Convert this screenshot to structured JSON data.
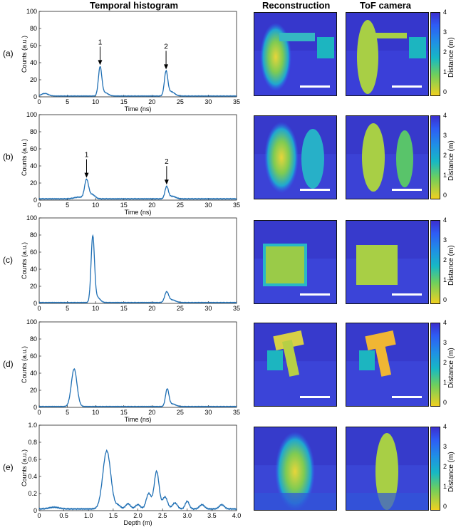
{
  "headers": {
    "histogram": "Temporal histogram",
    "reconstruction": "Reconstruction",
    "tof": "ToF camera"
  },
  "colorbar": {
    "label": "Distance (m)",
    "ticks": [
      "4",
      "3",
      "2",
      "1",
      "0"
    ],
    "colors": [
      "#3b2fcf",
      "#2e5cf5",
      "#1f8fe6",
      "#17b8c4",
      "#6fcf5c",
      "#f0d020"
    ]
  },
  "line_color": "#1f6fb4",
  "chart_data": [
    {
      "type": "line",
      "row_label": "(a)",
      "xlabel": "Time (ns)",
      "ylabel": "Counts (a.u.)",
      "xlim": [
        0,
        35
      ],
      "ylim": [
        0,
        100
      ],
      "xticks": [
        0,
        5,
        10,
        15,
        20,
        25,
        30,
        35
      ],
      "yticks": [
        0,
        20,
        40,
        60,
        80,
        100
      ],
      "peaks": [
        {
          "x": 1.0,
          "y": 3,
          "w": 0.6
        },
        {
          "x": 10.8,
          "y": 33,
          "w": 0.3
        },
        {
          "x": 11.6,
          "y": 4,
          "w": 0.6
        },
        {
          "x": 22.5,
          "y": 28,
          "w": 0.3
        },
        {
          "x": 23.4,
          "y": 5,
          "w": 0.6
        }
      ],
      "baseline": 1,
      "annotations": [
        {
          "text": "1",
          "x": 10.8,
          "y": 33
        },
        {
          "text": "2",
          "x": 22.5,
          "y": 28
        }
      ]
    },
    {
      "type": "line",
      "row_label": "(b)",
      "xlabel": "Time (ns)",
      "ylabel": "Counts (a.u.)",
      "xlim": [
        0,
        35
      ],
      "ylim": [
        0,
        100
      ],
      "xticks": [
        0,
        5,
        10,
        15,
        20,
        25,
        30,
        35
      ],
      "yticks": [
        0,
        20,
        40,
        60,
        80,
        100
      ],
      "peaks": [
        {
          "x": 7.0,
          "y": 2,
          "w": 0.8
        },
        {
          "x": 8.4,
          "y": 22,
          "w": 0.35
        },
        {
          "x": 9.4,
          "y": 5,
          "w": 0.5
        },
        {
          "x": 22.6,
          "y": 14,
          "w": 0.3
        },
        {
          "x": 23.6,
          "y": 3,
          "w": 0.6
        }
      ],
      "baseline": 1.5,
      "annotations": [
        {
          "text": "1",
          "x": 8.4,
          "y": 22
        },
        {
          "text": "2",
          "x": 22.6,
          "y": 14
        }
      ]
    },
    {
      "type": "line",
      "row_label": "(c)",
      "xlabel": "",
      "ylabel": "Counts (a.u.)",
      "xlim": [
        0,
        35
      ],
      "ylim": [
        0,
        100
      ],
      "xticks": [
        0,
        5,
        10,
        15,
        20,
        25,
        30,
        35
      ],
      "yticks": [
        0,
        20,
        40,
        60,
        80,
        100
      ],
      "peaks": [
        {
          "x": 9.5,
          "y": 77,
          "w": 0.3
        },
        {
          "x": 10.3,
          "y": 6,
          "w": 0.5
        },
        {
          "x": 22.6,
          "y": 12,
          "w": 0.35
        },
        {
          "x": 23.6,
          "y": 3,
          "w": 0.6
        }
      ],
      "baseline": 1,
      "annotations": []
    },
    {
      "type": "line",
      "row_label": "(d)",
      "xlabel": "Time (ns)",
      "ylabel": "Counts (a.u.)",
      "xlim": [
        0,
        35
      ],
      "ylim": [
        0,
        100
      ],
      "xticks": [
        0,
        5,
        10,
        15,
        20,
        25,
        30,
        35
      ],
      "yticks": [
        0,
        20,
        40,
        60,
        80,
        100
      ],
      "peaks": [
        {
          "x": 6.2,
          "y": 44,
          "w": 0.5
        },
        {
          "x": 22.7,
          "y": 20,
          "w": 0.3
        },
        {
          "x": 23.6,
          "y": 3,
          "w": 0.6
        }
      ],
      "baseline": 1,
      "annotations": []
    },
    {
      "type": "line",
      "row_label": "(e)",
      "xlabel": "Depth (m)",
      "ylabel": "Counts (a.u.)",
      "xlim": [
        0,
        4.0
      ],
      "ylim": [
        0,
        1.0
      ],
      "xticks": [
        0,
        0.5,
        1.0,
        1.5,
        2.0,
        2.5,
        3.0,
        3.5,
        4.0
      ],
      "xtick_labels": [
        "0",
        "0.5",
        "1.0",
        "1.5",
        "2.0",
        "2.5",
        "3.0",
        "3.5",
        "4.0"
      ],
      "yticks": [
        0,
        0.2,
        0.4,
        0.6,
        0.8,
        1.0
      ],
      "ytick_labels": [
        "0",
        "0.2",
        "0.4",
        "0.6",
        "0.8",
        "1.0"
      ],
      "peaks": [
        {
          "x": 1.37,
          "y": 0.68,
          "w": 0.08
        },
        {
          "x": 1.6,
          "y": 0.04,
          "w": 0.05
        },
        {
          "x": 1.8,
          "y": 0.06,
          "w": 0.05
        },
        {
          "x": 2.0,
          "y": 0.05,
          "w": 0.05
        },
        {
          "x": 2.22,
          "y": 0.18,
          "w": 0.05
        },
        {
          "x": 2.38,
          "y": 0.44,
          "w": 0.05
        },
        {
          "x": 2.55,
          "y": 0.14,
          "w": 0.05
        },
        {
          "x": 2.75,
          "y": 0.07,
          "w": 0.05
        },
        {
          "x": 3.0,
          "y": 0.09,
          "w": 0.04
        },
        {
          "x": 3.3,
          "y": 0.05,
          "w": 0.05
        },
        {
          "x": 3.7,
          "y": 0.05,
          "w": 0.05
        },
        {
          "x": 0.3,
          "y": 0.02,
          "w": 0.1
        }
      ],
      "baseline": 0.02,
      "annotations": []
    }
  ],
  "panels": [
    {
      "bg": "#3a3fd8",
      "shapes": "person_arm",
      "scale": true
    },
    {
      "bg": "#3b42d6",
      "shapes": "two_people",
      "scale": true
    },
    {
      "bg": "#3b44d8",
      "shapes": "box",
      "scale": true
    },
    {
      "bg": "#3b44d8",
      "shapes": "tshape",
      "scale": true
    },
    {
      "bg": "#3a46d6",
      "shapes": "single",
      "scale": false
    }
  ]
}
